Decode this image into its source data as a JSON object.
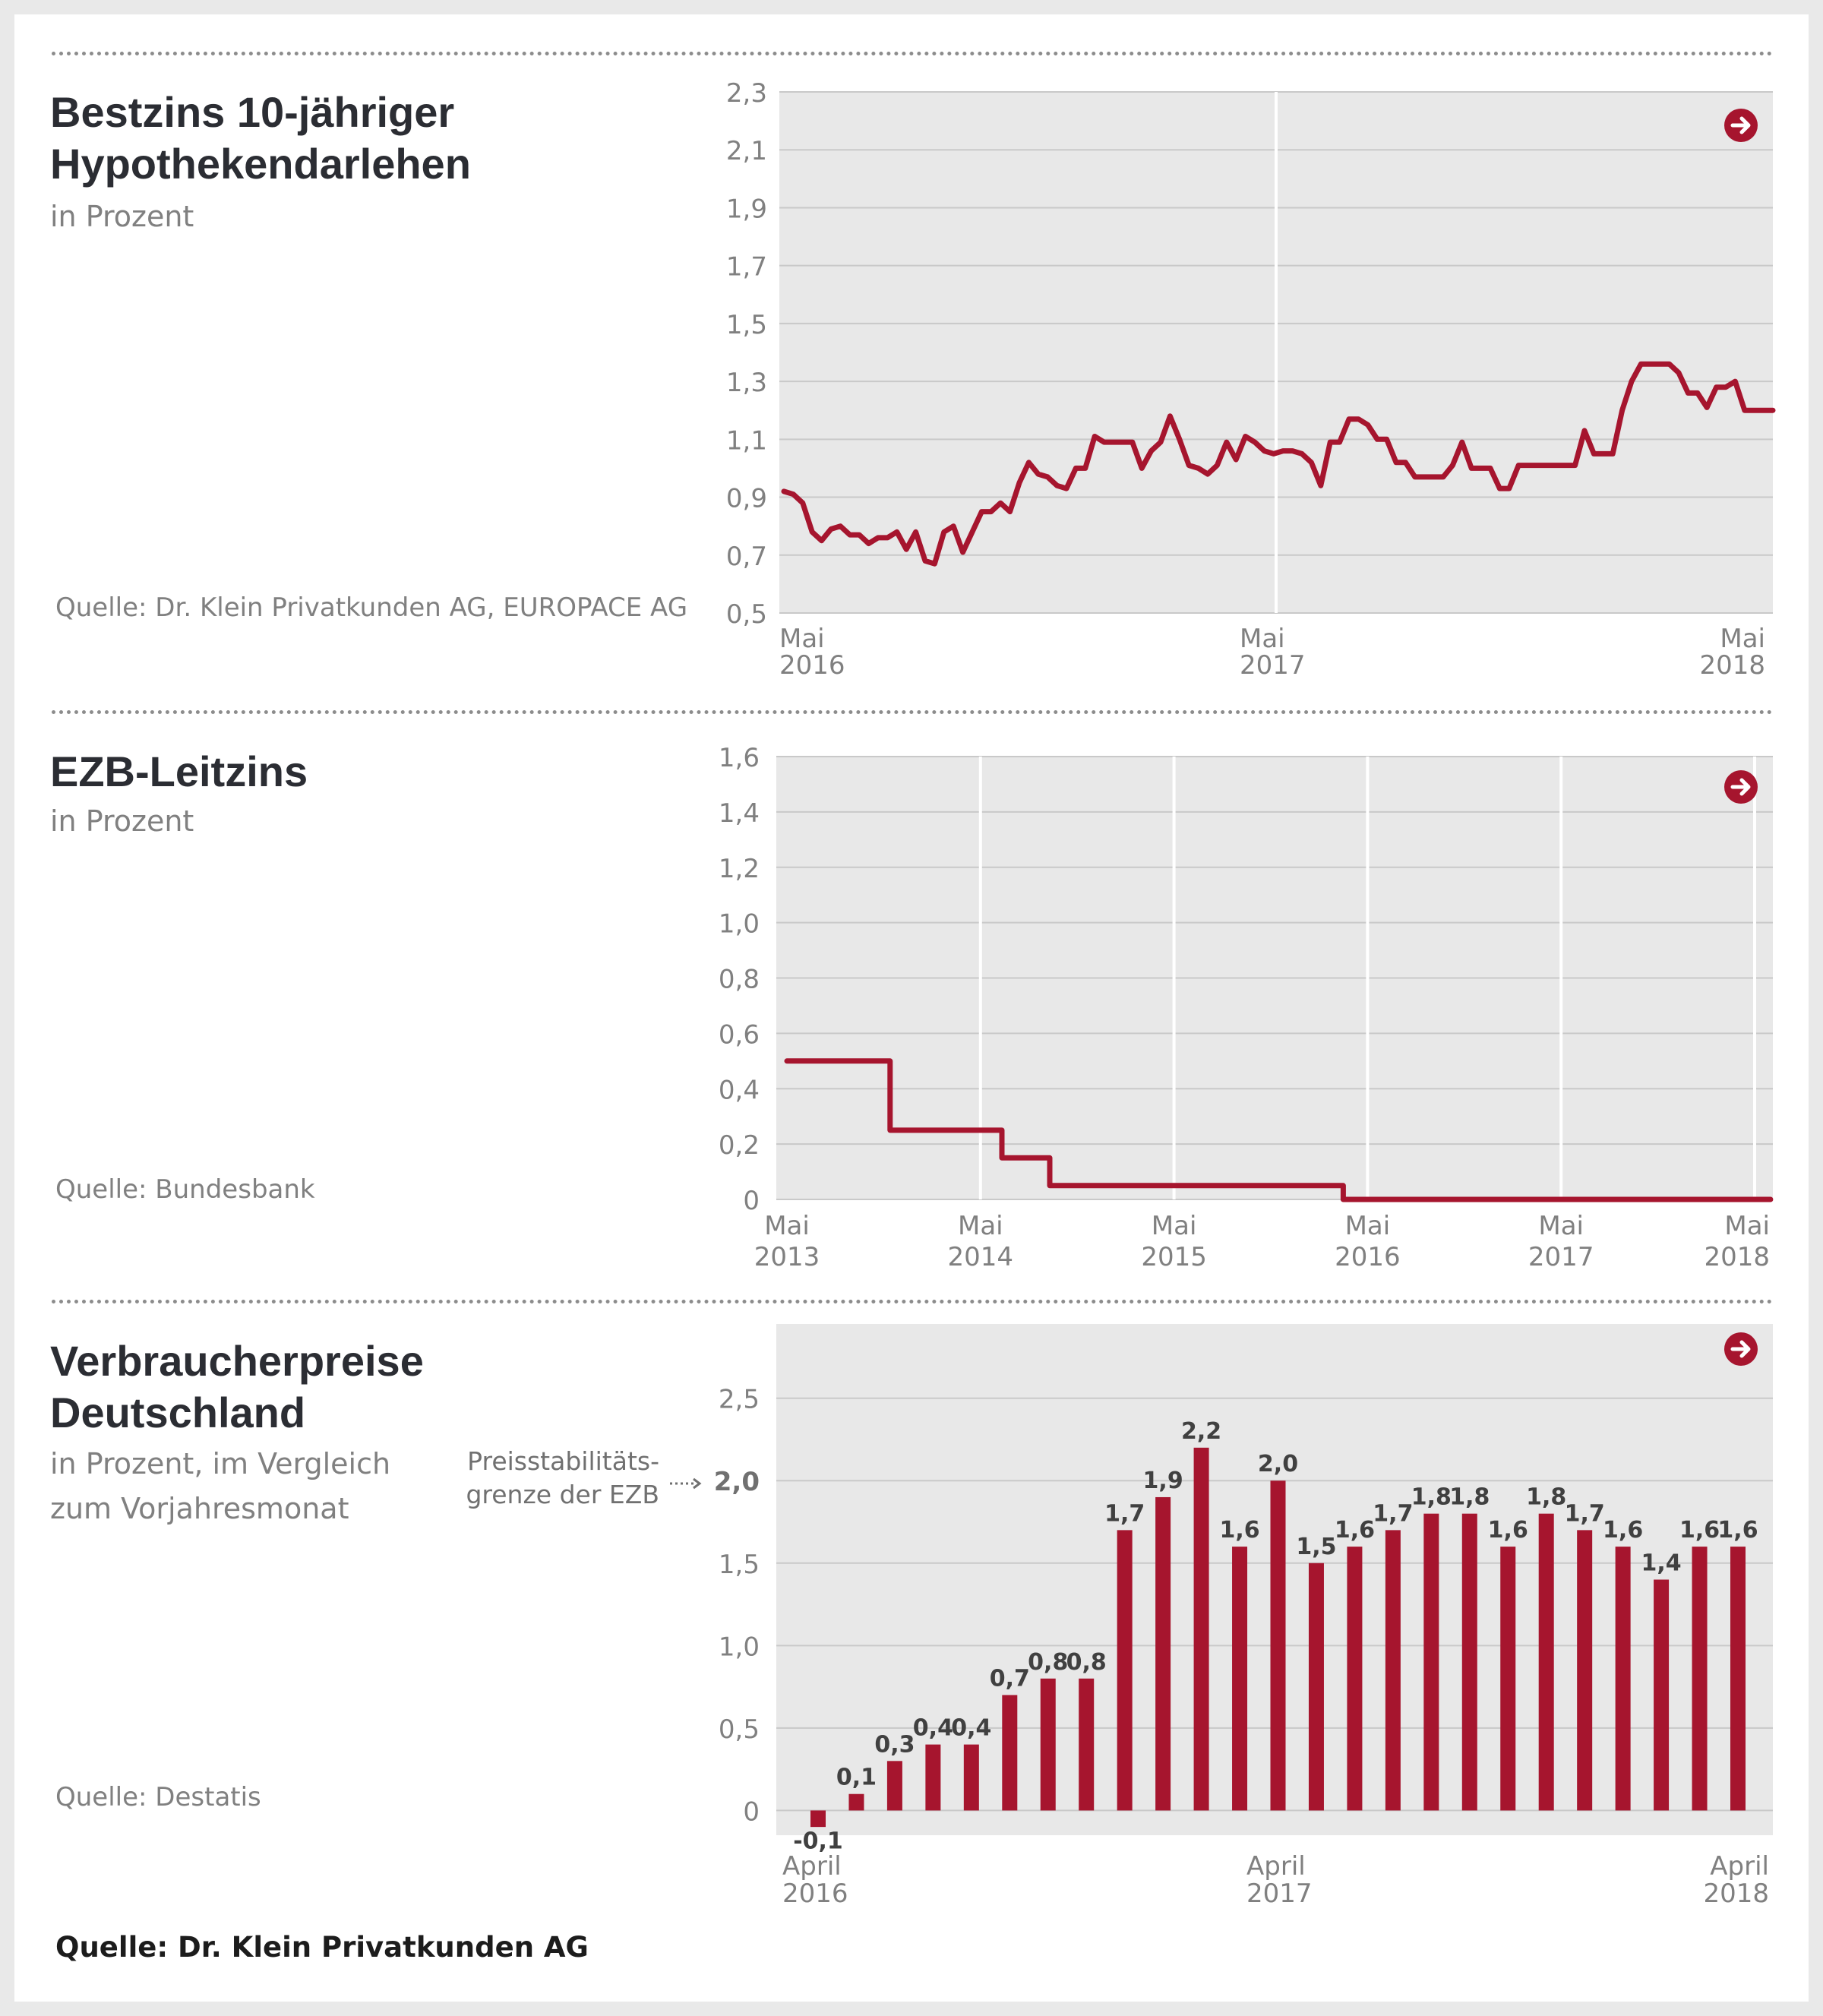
{
  "footer_source": "Quelle: Dr. Klein Privatkunden AG",
  "colors": {
    "series": "#a6152e",
    "plot_bg": "#e8e8e8",
    "grid": "#c9c9c9",
    "year_line": "#ffffff",
    "axis_text": "#808080",
    "value_label": "#404040"
  },
  "icons": {
    "arrow": "arrow-right-circle-icon"
  },
  "panels": [
    {
      "title": "Bestzins 10-jähriger\nHypothekendarlehen",
      "subtitle": "in Prozent",
      "source": "Quelle: Dr. Klein Privatkunden AG, EUROPACE AG"
    },
    {
      "title": "EZB-Leitzins",
      "subtitle": "in Prozent",
      "source": "Quelle: Bundesbank"
    },
    {
      "title": "Verbraucherpreise\nDeutschland",
      "subtitle": "in Prozent, im Vergleich\nzum Vorjahresmonat",
      "source": "Quelle: Destatis",
      "note": "Preisstabilitäts-\ngrenze der EZB"
    }
  ],
  "chart_data": [
    {
      "type": "line",
      "title": "Bestzins 10-jähriger Hypothekendarlehen",
      "unit": "in Prozent",
      "ylim": [
        0.5,
        2.3
      ],
      "yticks": [
        "0,5",
        "0,7",
        "0,9",
        "1,1",
        "1,3",
        "1,5",
        "1,7",
        "1,9",
        "2,1",
        "2,3"
      ],
      "xticks": [
        {
          "line1": "Mai",
          "line2": "2016"
        },
        {
          "line1": "Mai",
          "line2": "2017"
        },
        {
          "line1": "Mai",
          "line2": "2018"
        }
      ],
      "x_start": "2016-05",
      "x_end": "2018-05",
      "grid": true,
      "values": [
        0.92,
        0.91,
        0.88,
        0.78,
        0.75,
        0.79,
        0.8,
        0.77,
        0.77,
        0.74,
        0.76,
        0.76,
        0.78,
        0.72,
        0.78,
        0.68,
        0.67,
        0.78,
        0.8,
        0.71,
        0.78,
        0.85,
        0.85,
        0.88,
        0.85,
        0.95,
        1.02,
        0.98,
        0.97,
        0.94,
        0.93,
        1.0,
        1.0,
        1.11,
        1.09,
        1.09,
        1.09,
        1.09,
        1.0,
        1.06,
        1.09,
        1.18,
        1.1,
        1.01,
        1.0,
        0.98,
        1.01,
        1.09,
        1.03,
        1.11,
        1.09,
        1.06,
        1.05,
        1.06,
        1.06,
        1.05,
        1.02,
        0.94,
        1.09,
        1.09,
        1.17,
        1.17,
        1.15,
        1.1,
        1.1,
        1.02,
        1.02,
        0.97,
        0.97,
        0.97,
        0.97,
        1.01,
        1.09,
        1.0,
        1.0,
        1.0,
        0.93,
        0.93,
        1.01,
        1.01,
        1.01,
        1.01,
        1.01,
        1.01,
        1.01,
        1.13,
        1.05,
        1.05,
        1.05,
        1.2,
        1.3,
        1.36,
        1.36,
        1.36,
        1.36,
        1.33,
        1.26,
        1.26,
        1.21,
        1.28,
        1.28,
        1.3,
        1.2,
        1.2,
        1.2,
        1.2
      ]
    },
    {
      "type": "line",
      "title": "EZB-Leitzins",
      "unit": "in Prozent",
      "ylim": [
        0,
        1.6
      ],
      "yticks": [
        "0",
        "0,2",
        "0,4",
        "0,6",
        "0,8",
        "1,0",
        "1,2",
        "1,4",
        "1,6"
      ],
      "xticks": [
        {
          "line1": "Mai",
          "line2": "2013"
        },
        {
          "line1": "Mai",
          "line2": "2014"
        },
        {
          "line1": "Mai",
          "line2": "2015"
        },
        {
          "line1": "Mai",
          "line2": "2016"
        },
        {
          "line1": "Mai",
          "line2": "2017"
        },
        {
          "line1": "Mai",
          "line2": "2018"
        }
      ],
      "x_start": "2013-05",
      "x_end": "2018-05",
      "grid": true,
      "points": [
        {
          "x": "2013-05-01",
          "y": 0.5
        },
        {
          "x": "2013-11-13",
          "y": 0.5
        },
        {
          "x": "2013-11-13",
          "y": 0.25
        },
        {
          "x": "2014-06-11",
          "y": 0.25
        },
        {
          "x": "2014-06-11",
          "y": 0.15
        },
        {
          "x": "2014-09-10",
          "y": 0.15
        },
        {
          "x": "2014-09-10",
          "y": 0.05
        },
        {
          "x": "2016-03-16",
          "y": 0.05
        },
        {
          "x": "2016-03-16",
          "y": 0.0
        },
        {
          "x": "2018-05-31",
          "y": 0.0
        }
      ]
    },
    {
      "type": "bar",
      "title": "Verbraucherpreise Deutschland",
      "unit": "in Prozent, im Vergleich zum Vorjahresmonat",
      "ylim": [
        -0.15,
        2.95
      ],
      "yticks": [
        "0",
        "0,5",
        "1,0",
        "1,5",
        "2,0",
        "2,5"
      ],
      "reference_line": {
        "value": 2.0,
        "label": "Preisstabilitätsgrenze der EZB"
      },
      "xticks": [
        {
          "line1": "April",
          "line2": "2016"
        },
        {
          "line1": "April",
          "line2": "2017"
        },
        {
          "line1": "April",
          "line2": "2018"
        }
      ],
      "categories": [
        "2016-04",
        "2016-05",
        "2016-06",
        "2016-07",
        "2016-08",
        "2016-09",
        "2016-10",
        "2016-11",
        "2016-12",
        "2017-01",
        "2017-02",
        "2017-03",
        "2017-04",
        "2017-05",
        "2017-06",
        "2017-07",
        "2017-08",
        "2017-09",
        "2017-10",
        "2017-11",
        "2017-12",
        "2018-01",
        "2018-02",
        "2018-03",
        "2018-04"
      ],
      "values": [
        -0.1,
        0.1,
        0.3,
        0.4,
        0.4,
        0.7,
        0.8,
        0.8,
        1.7,
        1.9,
        2.2,
        1.6,
        2.0,
        1.5,
        1.6,
        1.7,
        1.8,
        1.8,
        1.6,
        1.8,
        1.7,
        1.6,
        1.4,
        1.6,
        1.6
      ],
      "labels": [
        "-0,1",
        "0,1",
        "0,3",
        "0,4",
        "0,4",
        "0,7",
        "0,8",
        "0,8",
        "1,7",
        "1,9",
        "2,2",
        "1,6",
        "2,0",
        "1,5",
        "1,6",
        "1,7",
        "1,8",
        "1,8",
        "1,6",
        "1,8",
        "1,7",
        "1,6",
        "1,4",
        "1,6",
        "1,6"
      ]
    }
  ]
}
